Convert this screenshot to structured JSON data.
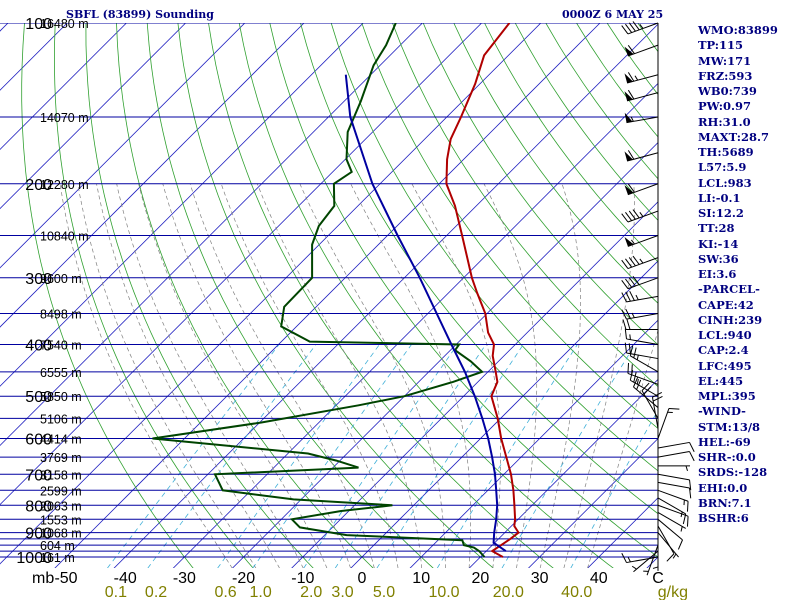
{
  "header": {
    "station": "SBFL (83899) Sounding",
    "time": "0000Z  6 MAY 25"
  },
  "indices": [
    "WMO:83899",
    "TP:115",
    "MW:171",
    "FRZ:593",
    "WB0:739",
    "PW:0.97",
    "RH:31.0",
    "MAXT:28.7",
    "TH:5689",
    "L57:5.9",
    "LCL:983",
    "LI:-0.1",
    "SI:12.2",
    "TT:28",
    "KI:-14",
    "SW:36",
    "EI:3.6",
    "-PARCEL-",
    "CAPE:42",
    "CINH:239",
    "LCL:940",
    "CAP:2.4",
    "LFC:495",
    "EL:445",
    "MPL:395",
    "-WIND-",
    "STM:13/8",
    "HEL:-69",
    "SHR-:0.0",
    "SRDS:-128",
    "EHI:0.0",
    "BRN:7.1",
    "BSHR:6"
  ],
  "colors": {
    "isobar": "#0000a0",
    "isotherm": "#2020c0",
    "dry_adiabat": "#30a030",
    "moist_adiabat": "#808080",
    "mixing_ratio": "#40b0d8",
    "temperature": "#b00000",
    "dewpoint": "#004400",
    "parcel": "#0000a0",
    "text": "#000080",
    "label_dark": "#000000",
    "mixing_label": "#808000"
  },
  "chart_data": {
    "type": "line",
    "title": "SBFL (83899) Sounding",
    "subtitle": "0000Z  6 MAY 25",
    "xlabel": "C",
    "xlabel2": "g/kg",
    "pressure_unit": "mb",
    "xlim": [
      -50,
      50
    ],
    "ylim": [
      1000,
      100
    ],
    "y_scale": "log",
    "isobar_levels": [
      100,
      150,
      200,
      250,
      300,
      350,
      400,
      450,
      500,
      550,
      600,
      650,
      700,
      750,
      800,
      850,
      900,
      925,
      950,
      975,
      1000
    ],
    "pressure_tick_labels": [
      {
        "p": 100,
        "label": "100"
      },
      {
        "p": 200,
        "label": "200"
      },
      {
        "p": 300,
        "label": "300"
      },
      {
        "p": 400,
        "label": "400"
      },
      {
        "p": 500,
        "label": "500"
      },
      {
        "p": 600,
        "label": "600"
      },
      {
        "p": 700,
        "label": "700"
      },
      {
        "p": 800,
        "label": "800"
      },
      {
        "p": 900,
        "label": "900"
      },
      {
        "p": 1000,
        "label": "1000"
      }
    ],
    "height_labels": [
      {
        "p": 100,
        "label": "16480 m"
      },
      {
        "p": 150,
        "label": "14070 m"
      },
      {
        "p": 200,
        "label": "12280 m"
      },
      {
        "p": 250,
        "label": "10840 m"
      },
      {
        "p": 300,
        "label": "9600 m"
      },
      {
        "p": 350,
        "label": "8498 m"
      },
      {
        "p": 400,
        "label": "7540 m"
      },
      {
        "p": 450,
        "label": "6555 m"
      },
      {
        "p": 500,
        "label": "5850 m"
      },
      {
        "p": 550,
        "label": "5106 m"
      },
      {
        "p": 600,
        "label": "4414 m"
      },
      {
        "p": 650,
        "label": "3769 m"
      },
      {
        "p": 700,
        "label": "3158 m"
      },
      {
        "p": 750,
        "label": "2599 m"
      },
      {
        "p": 800,
        "label": "2063 m"
      },
      {
        "p": 850,
        "label": "1553 m"
      },
      {
        "p": 900,
        "label": "1068 m"
      },
      {
        "p": 950,
        "label": "604 m"
      },
      {
        "p": 1000,
        "label": "161 m"
      }
    ],
    "temp_ticks": [
      {
        "t": -50,
        "label": "-50"
      },
      {
        "t": -40,
        "label": "-40"
      },
      {
        "t": -30,
        "label": "-30"
      },
      {
        "t": -20,
        "label": "-20"
      },
      {
        "t": -10,
        "label": "-10"
      },
      {
        "t": 0,
        "label": "0"
      },
      {
        "t": 10,
        "label": "10"
      },
      {
        "t": 20,
        "label": "20"
      },
      {
        "t": 30,
        "label": "30"
      },
      {
        "t": 40,
        "label": "40"
      },
      {
        "t": 50,
        "label": "C"
      }
    ],
    "mixing_ratios": [
      0.1,
      0.2,
      0.6,
      1.0,
      2.0,
      3.0,
      5.0,
      10.0,
      20.0,
      40.0
    ],
    "mixing_labels": [
      {
        "w": 0.1,
        "label": "0.1"
      },
      {
        "w": 0.2,
        "label": "0.2"
      },
      {
        "w": 0.6,
        "label": "0.6"
      },
      {
        "w": 1.0,
        "label": "1.0"
      },
      {
        "w": 2.0,
        "label": "2.0"
      },
      {
        "w": 3.0,
        "label": "3.0"
      },
      {
        "w": 5.0,
        "label": "5.0"
      },
      {
        "w": 10.0,
        "label": "10.0"
      },
      {
        "w": 20.0,
        "label": "20.0"
      },
      {
        "w": 40.0,
        "label": "40.0"
      }
    ],
    "series": [
      {
        "key": "temperature",
        "points": [
          [
            1000,
            23.8
          ],
          [
            975,
            21.0
          ],
          [
            950,
            21.5
          ],
          [
            925,
            22.0
          ],
          [
            900,
            22.3
          ],
          [
            875,
            20.5
          ],
          [
            850,
            19.5
          ],
          [
            800,
            17.0
          ],
          [
            750,
            14.3
          ],
          [
            700,
            11.2
          ],
          [
            650,
            7.5
          ],
          [
            600,
            3.5
          ],
          [
            550,
            -0.5
          ],
          [
            500,
            -5.3
          ],
          [
            470,
            -6.7
          ],
          [
            450,
            -8.7
          ],
          [
            420,
            -11.9
          ],
          [
            400,
            -13.6
          ],
          [
            380,
            -16.6
          ],
          [
            350,
            -20.3
          ],
          [
            320,
            -25.2
          ],
          [
            300,
            -28.6
          ],
          [
            250,
            -37.4
          ],
          [
            220,
            -43.6
          ],
          [
            200,
            -48.8
          ],
          [
            180,
            -52.8
          ],
          [
            165,
            -55.6
          ],
          [
            150,
            -57.6
          ],
          [
            130,
            -60.8
          ],
          [
            115,
            -64.1
          ],
          [
            100,
            -65.3
          ]
        ]
      },
      {
        "key": "dewpoint",
        "points": [
          [
            1000,
            20.7
          ],
          [
            975,
            18.8
          ],
          [
            960,
            17.3
          ],
          [
            950,
            15.2
          ],
          [
            930,
            14.1
          ],
          [
            910,
            -6.3
          ],
          [
            880,
            -15.5
          ],
          [
            850,
            -18.2
          ],
          [
            820,
            -11.3
          ],
          [
            800,
            -3.6
          ],
          [
            780,
            -21.3
          ],
          [
            750,
            -34.8
          ],
          [
            700,
            -38.8
          ],
          [
            680,
            -15.7
          ],
          [
            660,
            -20.6
          ],
          [
            640,
            -26.6
          ],
          [
            600,
            -55.4
          ],
          [
            560,
            -39.7
          ],
          [
            520,
            -26.2
          ],
          [
            500,
            -20.0
          ],
          [
            470,
            -14.2
          ],
          [
            450,
            -11.0
          ],
          [
            430,
            -14.7
          ],
          [
            410,
            -19.2
          ],
          [
            400,
            -19.5
          ],
          [
            395,
            -45.2
          ],
          [
            370,
            -52.6
          ],
          [
            340,
            -55.4
          ],
          [
            300,
            -55.6
          ],
          [
            260,
            -61.2
          ],
          [
            240,
            -63.2
          ],
          [
            220,
            -64.0
          ],
          [
            200,
            -67.8
          ],
          [
            190,
            -66.8
          ],
          [
            180,
            -69.8
          ],
          [
            160,
            -74.2
          ],
          [
            140,
            -77.2
          ],
          [
            120,
            -81.1
          ],
          [
            110,
            -82.4
          ],
          [
            100,
            -84.5
          ]
        ]
      },
      {
        "key": "parcel",
        "points": [
          [
            975,
            23.3
          ],
          [
            950,
            20.8
          ],
          [
            940,
            19.8
          ],
          [
            900,
            18.2
          ],
          [
            850,
            16.3
          ],
          [
            800,
            14.1
          ],
          [
            750,
            11.4
          ],
          [
            700,
            8.5
          ],
          [
            650,
            5.1
          ],
          [
            600,
            1.3
          ],
          [
            550,
            -3.1
          ],
          [
            500,
            -8.1
          ],
          [
            450,
            -13.9
          ],
          [
            400,
            -20.8
          ],
          [
            350,
            -28.5
          ],
          [
            300,
            -37.4
          ],
          [
            250,
            -48.3
          ],
          [
            200,
            -61.3
          ],
          [
            150,
            -76.3
          ],
          [
            125,
            -84.2
          ]
        ]
      }
    ],
    "winds": [
      {
        "p": 1000,
        "dir": 260,
        "spd": 15
      },
      {
        "p": 975,
        "dir": 230,
        "spd": 5
      },
      {
        "p": 950,
        "dir": 200,
        "spd": 5
      },
      {
        "p": 925,
        "dir": 180,
        "spd": 5
      },
      {
        "p": 900,
        "dir": 140,
        "spd": 5
      },
      {
        "p": 875,
        "dir": 150,
        "spd": 10
      },
      {
        "p": 850,
        "dir": 130,
        "spd": 10
      },
      {
        "p": 825,
        "dir": 120,
        "spd": 5
      },
      {
        "p": 800,
        "dir": 110,
        "spd": 10
      },
      {
        "p": 775,
        "dir": 120,
        "spd": 15
      },
      {
        "p": 750,
        "dir": 110,
        "spd": 15
      },
      {
        "p": 725,
        "dir": 100,
        "spd": 10
      },
      {
        "p": 700,
        "dir": 100,
        "spd": 10
      },
      {
        "p": 675,
        "dir": 90,
        "spd": 5
      },
      {
        "p": 650,
        "dir": 80,
        "spd": 10
      },
      {
        "p": 625,
        "dir": 80,
        "spd": 10
      },
      {
        "p": 600,
        "dir": 20,
        "spd": 15
      },
      {
        "p": 575,
        "dir": 350,
        "spd": 20
      },
      {
        "p": 550,
        "dir": 330,
        "spd": 20
      },
      {
        "p": 525,
        "dir": 310,
        "spd": 20
      },
      {
        "p": 500,
        "dir": 300,
        "spd": 25
      },
      {
        "p": 475,
        "dir": 290,
        "spd": 20
      },
      {
        "p": 450,
        "dir": 300,
        "spd": 25
      },
      {
        "p": 425,
        "dir": 280,
        "spd": 20
      },
      {
        "p": 400,
        "dir": 280,
        "spd": 15
      },
      {
        "p": 375,
        "dir": 270,
        "spd": 20
      },
      {
        "p": 350,
        "dir": 260,
        "spd": 25
      },
      {
        "p": 325,
        "dir": 260,
        "spd": 35
      },
      {
        "p": 300,
        "dir": 250,
        "spd": 40
      },
      {
        "p": 275,
        "dir": 250,
        "spd": 45
      },
      {
        "p": 250,
        "dir": 250,
        "spd": 55
      },
      {
        "p": 225,
        "dir": 250,
        "spd": 45
      },
      {
        "p": 200,
        "dir": 250,
        "spd": 60
      },
      {
        "p": 175,
        "dir": 255,
        "spd": 60
      },
      {
        "p": 150,
        "dir": 260,
        "spd": 55
      },
      {
        "p": 135,
        "dir": 255,
        "spd": 60
      },
      {
        "p": 125,
        "dir": 255,
        "spd": 65
      },
      {
        "p": 110,
        "dir": 250,
        "spd": 60
      },
      {
        "p": 100,
        "dir": 250,
        "spd": 45
      }
    ]
  }
}
